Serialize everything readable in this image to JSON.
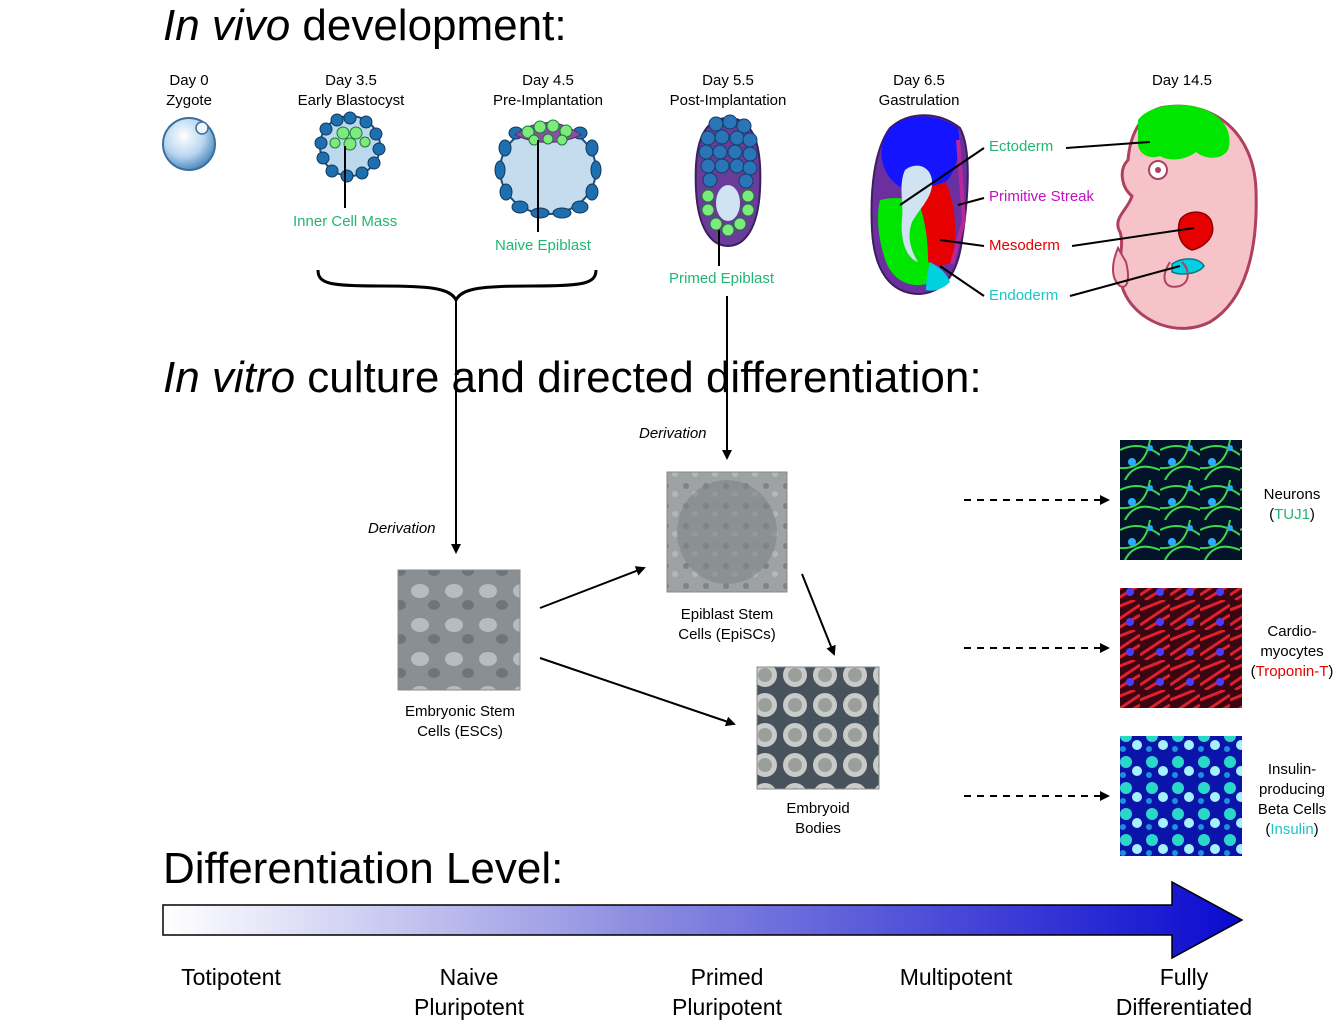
{
  "sections": {
    "in_vivo": {
      "italic": "In vivo",
      "rest": " development:"
    },
    "in_vitro": {
      "italic": "In vitro",
      "rest": " culture and directed differentiation:"
    },
    "level": {
      "title": "Differentiation Level:"
    }
  },
  "stages": [
    {
      "day": "Day 0",
      "name": "Zygote"
    },
    {
      "day": "Day 3.5",
      "name": "Early Blastocyst"
    },
    {
      "day": "Day 4.5",
      "name": "Pre-Implantation"
    },
    {
      "day": "Day 5.5",
      "name": "Post-Implantation"
    },
    {
      "day": "Day 6.5",
      "name": "Gastrulation"
    },
    {
      "day": "Day 14.5",
      "name": ""
    }
  ],
  "embryo_labels": {
    "inner_cell_mass": "Inner Cell Mass",
    "naive_epiblast": "Naive Epiblast",
    "primed_epiblast": "Primed Epiblast",
    "ectoderm": "Ectoderm",
    "primitive_streak": "Primitive Streak",
    "mesoderm": "Mesoderm",
    "endoderm": "Endoderm"
  },
  "derivation_label": "Derivation",
  "cultures": {
    "escs": {
      "line1": "Embryonic Stem",
      "line2": "Cells (ESCs)"
    },
    "episcs": {
      "line1": "Epiblast Stem",
      "line2": "Cells (EpiSCs)"
    },
    "ebs": {
      "line1": "Embryoid",
      "line2": "Bodies"
    }
  },
  "differentiated": {
    "neurons": {
      "line1": "Neurons",
      "open": "(",
      "marker": "TUJ1",
      "close": ")"
    },
    "cardio": {
      "line1": "Cardio-",
      "line2": "myocytes",
      "open": "(",
      "marker": "Troponin-T",
      "close": ")"
    },
    "beta": {
      "line1": "Insulin-",
      "line2": "producing",
      "line3": "Beta Cells",
      "open": "(",
      "marker": "Insulin",
      "close": ")"
    }
  },
  "levels": [
    {
      "line1": "Totipotent",
      "line2": ""
    },
    {
      "line1": "Naive",
      "line2": "Pluripotent"
    },
    {
      "line1": "Primed",
      "line2": "Pluripotent"
    },
    {
      "line1": "Multipotent",
      "line2": ""
    },
    {
      "line1": "Fully",
      "line2": "Differentiated"
    }
  ],
  "colors": {
    "ectoderm": "#00e600",
    "mesoderm": "#e60000",
    "endoderm": "#00d0e0",
    "label_green": "#22b573",
    "label_magenta": "#c20fc2",
    "arrow_end": "#0a0ad0"
  }
}
